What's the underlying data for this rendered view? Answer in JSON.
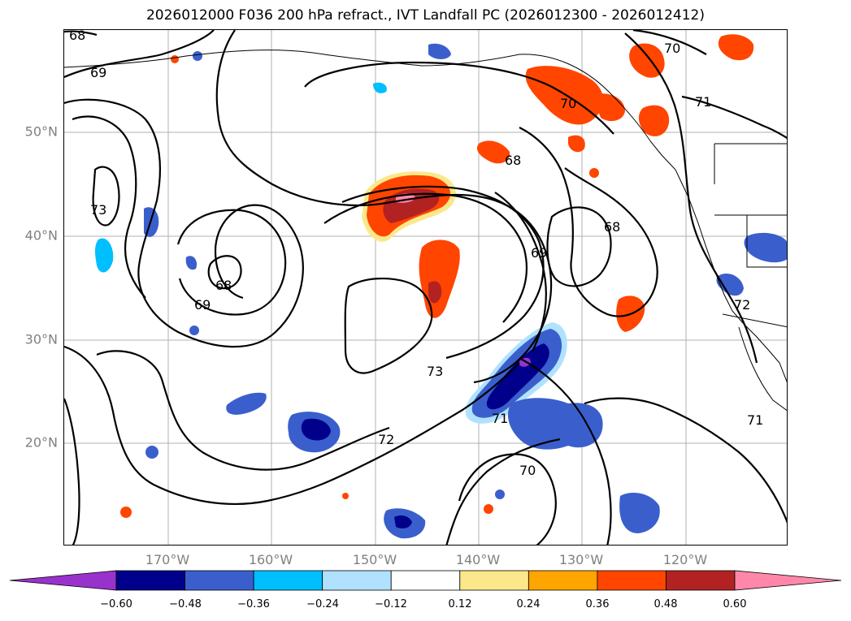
{
  "title": "2026012000 F036 200 hPa refract., IVT Landfall PC (2026012300 - 2026012412)",
  "map": {
    "lat_labels": [
      "50°N",
      "40°N",
      "30°N",
      "20°N"
    ],
    "lon_labels": [
      "170°W",
      "160°W",
      "150°W",
      "140°W",
      "130°W",
      "120°W"
    ],
    "contour_labels": [
      "68",
      "69",
      "73",
      "68",
      "69",
      "70",
      "70",
      "71",
      "68",
      "68",
      "69",
      "73",
      "72",
      "71",
      "70",
      "72",
      "71"
    ]
  },
  "colorbar": {
    "tick_labels": [
      "−0.60",
      "−0.48",
      "−0.36",
      "−0.24",
      "−0.12",
      "0.12",
      "0.24",
      "0.36",
      "0.48",
      "0.60"
    ],
    "colors": [
      "#9932cc",
      "#00008b",
      "#3a5fcd",
      "#00bfff",
      "#b0e2ff",
      "#ffffff",
      "#fbe88a",
      "#ffa500",
      "#ff4500",
      "#b22222",
      "#ff88aa"
    ]
  }
}
